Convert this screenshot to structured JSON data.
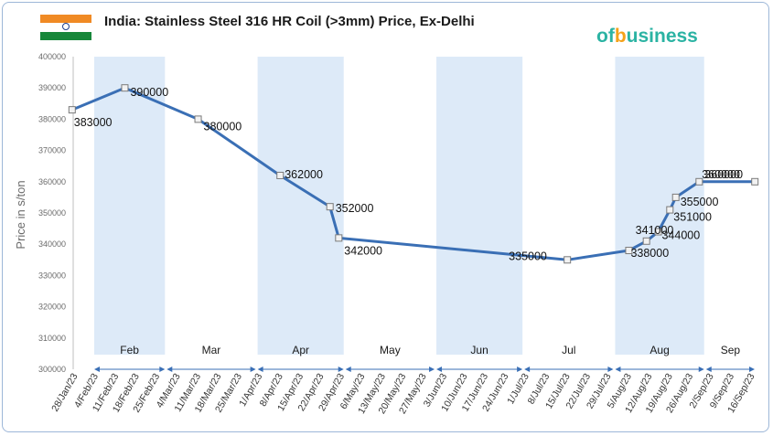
{
  "header": {
    "title": "India: Stainless Steel 316 HR Coil (>3mm) Price, Ex-Delhi",
    "logo_text_left": "of",
    "logo_text_mid": "b",
    "logo_text_right": "usiness"
  },
  "colors": {
    "line": "#3a6fb5",
    "band": "#ddeaf8",
    "arrow": "#3a6fb5"
  },
  "icons": [
    "india-flag-icon"
  ],
  "chart_data": {
    "type": "line",
    "title": "India: Stainless Steel 316 HR Coil (>3mm) Price, Ex-Delhi",
    "ylabel": "Price in s/ton",
    "xlabel": "",
    "ylim": [
      300000,
      400000
    ],
    "y_ticks": [
      300000,
      310000,
      320000,
      330000,
      340000,
      350000,
      360000,
      370000,
      380000,
      390000,
      400000
    ],
    "x_ticks": [
      "28/Jan/23",
      "4/Feb/23",
      "11/Feb/23",
      "18/Feb/23",
      "25/Feb/23",
      "4/Mar/23",
      "11/Mar/23",
      "18/Mar/23",
      "25/Mar/23",
      "1/Apr/23",
      "8/Apr/23",
      "15/Apr/23",
      "22/Apr/23",
      "29/Apr/23",
      "6/May/23",
      "13/May/23",
      "20/May/23",
      "27/May/23",
      "3/Jun/23",
      "10/Jun/23",
      "17/Jun/23",
      "24/Jun/23",
      "1/Jul/23",
      "8/Jul/23",
      "15/Jul/23",
      "22/Jul/23",
      "29/Jul/23",
      "5/Aug/23",
      "12/Aug/23",
      "19/Aug/23",
      "26/Aug/23",
      "2/Sep/23",
      "9/Sep/23",
      "16/Sep/23"
    ],
    "months": [
      {
        "label": "Feb",
        "start": "2023-01-31",
        "end": "2023-02-28",
        "shaded": true
      },
      {
        "label": "Mar",
        "start": "2023-02-28",
        "end": "2023-03-31",
        "shaded": false
      },
      {
        "label": "Apr",
        "start": "2023-03-31",
        "end": "2023-04-30",
        "shaded": true
      },
      {
        "label": "May",
        "start": "2023-04-30",
        "end": "2023-05-31",
        "shaded": false
      },
      {
        "label": "Jun",
        "start": "2023-05-31",
        "end": "2023-06-30",
        "shaded": true
      },
      {
        "label": "Jul",
        "start": "2023-06-30",
        "end": "2023-07-31",
        "shaded": false
      },
      {
        "label": "Aug",
        "start": "2023-07-31",
        "end": "2023-08-31",
        "shaded": true
      },
      {
        "label": "Sep",
        "start": "2023-08-31",
        "end": "2023-09-20",
        "shaded": false
      }
    ],
    "points": [
      {
        "x": "2023-01-27",
        "y": 383000,
        "label": "383000"
      },
      {
        "x": "2023-02-14",
        "y": 390000,
        "label": "390000"
      },
      {
        "x": "2023-03-11",
        "y": 380000,
        "label": "380000"
      },
      {
        "x": "2023-04-08",
        "y": 362000,
        "label": "362000"
      },
      {
        "x": "2023-04-25",
        "y": 352000,
        "label": "352000"
      },
      {
        "x": "2023-04-28",
        "y": 342000,
        "label": "342000"
      },
      {
        "x": "2023-07-15",
        "y": 335000,
        "label": "335000"
      },
      {
        "x": "2023-08-05",
        "y": 338000,
        "label": "338000"
      },
      {
        "x": "2023-08-11",
        "y": 341000,
        "label": "341000"
      },
      {
        "x": "2023-08-15",
        "y": 344000,
        "label": "344000"
      },
      {
        "x": "2023-08-19",
        "y": 351000,
        "label": "351000"
      },
      {
        "x": "2023-08-21",
        "y": 355000,
        "label": "355000"
      },
      {
        "x": "2023-08-29",
        "y": 360000,
        "label": "360000"
      },
      {
        "x": "2023-09-17",
        "y": 360000,
        "label": "360000"
      }
    ],
    "grid": false,
    "legend": "none"
  }
}
